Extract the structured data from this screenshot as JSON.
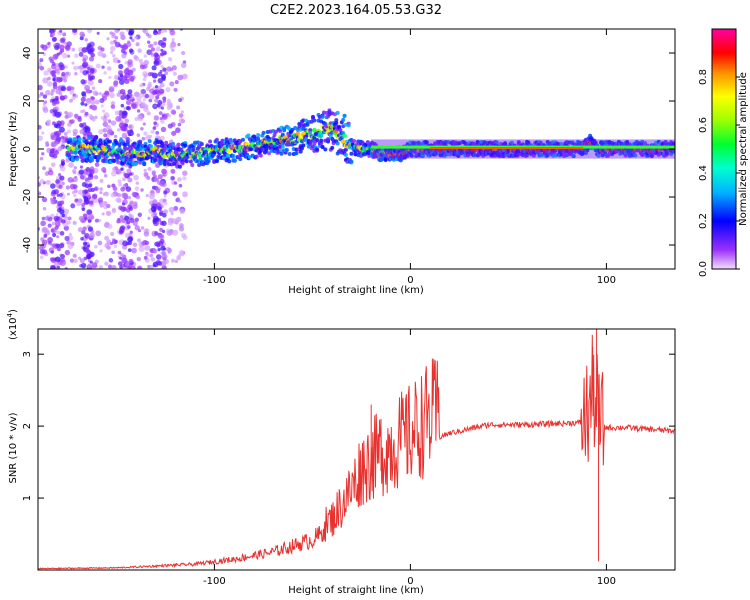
{
  "title": "C2E2.2023.164.05.53.G32",
  "chart_data": [
    {
      "type": "heatmap",
      "xlabel": "Height of straight line (km)",
      "ylabel": "Frequency (Hz)",
      "xlim": [
        -190,
        135
      ],
      "ylim": [
        -50,
        50
      ],
      "xticks": [
        -100,
        0,
        100
      ],
      "yticks": [
        -40,
        -20,
        0,
        20,
        40
      ],
      "ridge": {
        "x": [
          -175,
          -160,
          -150,
          -140,
          -130,
          -120,
          -110,
          -100,
          -90,
          -80,
          -70,
          -60,
          -55,
          -50,
          -45,
          -40,
          -35,
          -30,
          -25,
          -20,
          -15,
          -10,
          -5,
          0,
          10,
          20,
          40,
          60,
          80,
          88,
          92,
          96,
          100,
          120,
          135
        ],
        "y": [
          0,
          0,
          -1,
          -2,
          -1,
          -3,
          -2,
          -1,
          0,
          1,
          3,
          4,
          5,
          6,
          7,
          8,
          6,
          1,
          0,
          0,
          -2,
          -2,
          -2,
          0,
          0,
          0,
          0,
          0,
          0,
          0,
          3,
          0,
          0,
          0,
          0
        ]
      },
      "colorbar": {
        "label": "Normalized spectral amplitude",
        "range": [
          0,
          1
        ],
        "ticks": [
          0.0,
          0.2,
          0.4,
          0.6,
          0.8
        ]
      }
    },
    {
      "type": "line",
      "xlabel": "Height of straight line (km)",
      "ylabel": "SNR (10 * v/v)",
      "y_multiplier": "(x10",
      "y_multiplier_exp": "4",
      "y_multiplier_close": ")",
      "xlim": [
        -190,
        135
      ],
      "ylim": [
        0,
        3.35
      ],
      "xticks": [
        -100,
        0,
        100
      ],
      "yticks": [
        1,
        2,
        3
      ],
      "color": "#e8322f",
      "envelope": {
        "x": [
          -190,
          -150,
          -110,
          -90,
          -70,
          -50,
          -40,
          -30,
          -25,
          -20,
          -10,
          0,
          10,
          20,
          40,
          60,
          80,
          88,
          91,
          93,
          95,
          96,
          98,
          100,
          110,
          120,
          135
        ],
        "y": [
          0.02,
          0.03,
          0.08,
          0.15,
          0.25,
          0.42,
          0.6,
          0.95,
          1.2,
          1.3,
          1.45,
          1.6,
          1.8,
          1.9,
          2.02,
          2.02,
          2.04,
          2.05,
          2.2,
          2.5,
          2.3,
          2.1,
          2.0,
          1.98,
          1.98,
          1.96,
          1.93
        ]
      },
      "spikes": [
        {
          "x": -20,
          "y": 2.3
        },
        {
          "x": -15,
          "y": 2.1
        },
        {
          "x": 93,
          "y": 3.1
        },
        {
          "x": 95,
          "y": 3.35
        },
        {
          "x": 96,
          "y": 0.12
        }
      ]
    }
  ]
}
